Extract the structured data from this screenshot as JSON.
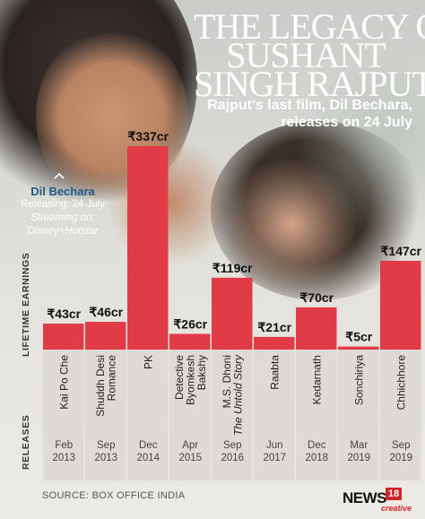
{
  "headline": {
    "line1": "THE LEGACY OF",
    "line2": "SUSHANT",
    "line3": "SINGH RAJPUT"
  },
  "subtitle": "Rajput's last film, Dil Bechara, releases on 24 July",
  "dil_bechara": {
    "title": "Dil Bechara",
    "releasing": "Releasing: 24 July",
    "streaming_label": "Streaming on:",
    "platform": "Disney+Hotstar"
  },
  "axis_labels": {
    "earnings": "LIFETIME EARNINGS",
    "releases": "RELEASES"
  },
  "source": "SOURCE: BOX OFFICE INDIA",
  "logo": {
    "brand": "NEWS",
    "number": "18",
    "sub": "creative"
  },
  "colors": {
    "bar": "#e03b47",
    "panel": "#dedbd6",
    "text": "#222222",
    "accent": "#1c5b86"
  },
  "chart_data": {
    "type": "bar",
    "unit": "cr",
    "currency": "₹",
    "categories": [
      "Kai Po Che",
      "Shuddh Desi Romance",
      "PK",
      "Detective Byomkesh Bakshy",
      "M.S. Dhoni The Untold Story",
      "Raabta",
      "Kedarnath",
      "Sonchiriya",
      "Chhichhore"
    ],
    "name_lines": [
      [
        "Kai Po Che"
      ],
      [
        "Shuddh Desi",
        "Romance"
      ],
      [
        "PK"
      ],
      [
        "Detective",
        "Byomkesh",
        "Bakshy"
      ],
      [
        "M.S. Dhoni",
        "The Untold Story"
      ],
      [
        "Raabta"
      ],
      [
        "Kedarnath"
      ],
      [
        "Sonchiriya"
      ],
      [
        "Chhichhore"
      ]
    ],
    "values": [
      43,
      46,
      337,
      26,
      119,
      21,
      70,
      5,
      147
    ],
    "value_labels": [
      "₹43cr",
      "₹46cr",
      "₹337cr",
      "₹26cr",
      "₹119cr",
      "₹21cr",
      "₹70cr",
      "₹5cr",
      "₹147cr"
    ],
    "releases": [
      [
        "Feb",
        "2013"
      ],
      [
        "Sep",
        "2013"
      ],
      [
        "Dec",
        "2014"
      ],
      [
        "Apr",
        "2015"
      ],
      [
        "Sep",
        "2016"
      ],
      [
        "Jun",
        "2017"
      ],
      [
        "Dec",
        "2018"
      ],
      [
        "Mar",
        "2019"
      ],
      [
        "Sep",
        "2019"
      ]
    ],
    "ylim": [
      0,
      337
    ]
  }
}
